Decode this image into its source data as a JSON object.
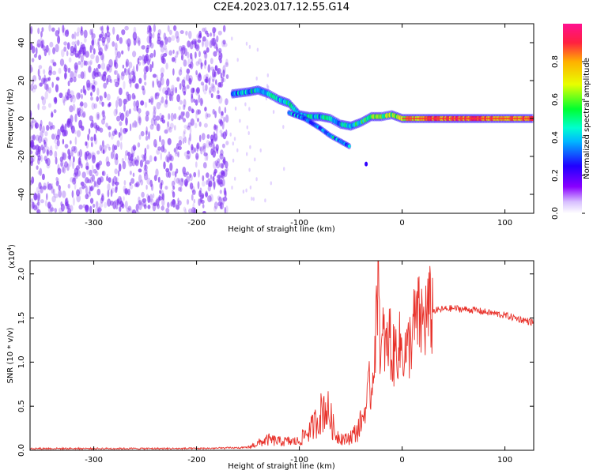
{
  "title": "C2E4.2023.017.12.55.G14",
  "colors": {
    "noise": "#7a2cf0",
    "snr_line": "#e8312a",
    "colorbar": [
      "#8a00ff",
      "#2000ff",
      "#00d8ff",
      "#00ff30",
      "#e8ff00",
      "#ffb000",
      "#ff2040",
      "#ff1090"
    ]
  },
  "chart_data": [
    {
      "type": "heatmap",
      "xlabel": "Height of straight line (km)",
      "ylabel": "Frequency (Hz)",
      "xlim": [
        -362,
        128
      ],
      "ylim": [
        -50,
        50
      ],
      "xticks": [
        -300,
        -200,
        -100,
        0,
        100
      ],
      "yticks": [
        -40,
        -20,
        0,
        20,
        40
      ],
      "xtick_labels": [
        "-300",
        "-200",
        "-100",
        "0",
        "100"
      ],
      "ytick_labels": [
        "-40",
        "-20",
        "0",
        "20",
        "40"
      ],
      "colorbar": {
        "label": "Normalized spectral amplitude",
        "range": [
          0,
          1
        ],
        "ticks": [
          0.0,
          0.2,
          0.4,
          0.6,
          0.8
        ],
        "tick_labels": [
          "0.0",
          "0.2",
          "0.4",
          "0.6",
          "0.8"
        ]
      },
      "noise_region": {
        "x": [
          -362,
          -170
        ],
        "y": [
          -50,
          48
        ],
        "amplitude": 0.15
      },
      "signal_track": {
        "x": [
          -165,
          -150,
          -140,
          -130,
          -120,
          -110,
          -100,
          -90,
          -80,
          -70,
          -60,
          -50,
          -40,
          -30,
          -20,
          -10,
          0,
          20,
          50,
          80,
          128
        ],
        "y": [
          13,
          14,
          15,
          13,
          10,
          8,
          2,
          1,
          1,
          0,
          -3,
          -4,
          -2,
          1,
          1,
          2,
          0,
          0,
          0,
          0,
          0
        ],
        "amplitude": [
          0.35,
          0.4,
          0.45,
          0.4,
          0.4,
          0.5,
          0.45,
          0.45,
          0.4,
          0.45,
          0.4,
          0.45,
          0.5,
          0.55,
          0.6,
          0.6,
          0.7,
          0.8,
          0.85,
          0.85,
          0.8
        ]
      },
      "branch_track": {
        "x": [
          -110,
          -95,
          -80,
          -70,
          -60,
          -50
        ],
        "y": [
          3,
          0,
          -5,
          -9,
          -12,
          -15
        ],
        "amplitude": [
          0.35,
          0.35,
          0.35,
          0.4,
          0.4,
          0.35
        ]
      }
    },
    {
      "type": "line",
      "xlabel": "Height of straight line (km)",
      "ylabel": "SNR (10 * v/v)",
      "y_multiplier": "(x10",
      "y_multiplier_exp": "4",
      "xlim": [
        -362,
        128
      ],
      "ylim": [
        0,
        2.15
      ],
      "xticks": [
        -300,
        -200,
        -100,
        0,
        100
      ],
      "yticks": [
        0.0,
        0.5,
        1.0,
        1.5,
        2.0
      ],
      "xtick_labels": [
        "-300",
        "-200",
        "-100",
        "0",
        "100"
      ],
      "ytick_labels": [
        "0.0",
        "0.5",
        "1.0",
        "1.5",
        "2.0"
      ],
      "series": [
        {
          "x": [
            -362,
            -300,
            -200,
            -150,
            -140,
            -130,
            -120,
            -110,
            -100,
            -95,
            -90,
            -85,
            -80,
            -75,
            -70,
            -65,
            -60,
            -55,
            -50,
            -45,
            -40,
            -35,
            -32,
            -30,
            -28,
            -25,
            -23,
            -21,
            -18,
            -15,
            -12,
            -10,
            -5,
            0,
            5,
            10,
            15,
            20,
            25,
            30,
            40,
            50,
            60,
            70,
            80,
            90,
            100,
            110,
            120,
            128
          ],
          "y": [
            0.02,
            0.02,
            0.02,
            0.03,
            0.08,
            0.12,
            0.1,
            0.1,
            0.1,
            0.18,
            0.22,
            0.3,
            0.4,
            0.5,
            0.38,
            0.18,
            0.15,
            0.12,
            0.16,
            0.2,
            0.3,
            0.5,
            0.75,
            0.6,
            1.0,
            1.4,
            2.15,
            0.95,
            1.3,
            1.1,
            1.35,
            1.0,
            1.2,
            1.15,
            1.1,
            1.35,
            1.5,
            1.45,
            1.55,
            1.58,
            1.6,
            1.61,
            1.6,
            1.59,
            1.57,
            1.55,
            1.53,
            1.5,
            1.47,
            1.45
          ]
        }
      ]
    }
  ]
}
